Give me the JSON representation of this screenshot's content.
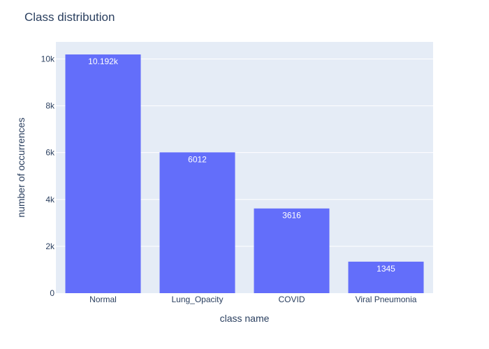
{
  "chart_data": {
    "type": "bar",
    "title": "Class distribution",
    "xlabel": "class name",
    "ylabel": "number of occurrences",
    "categories": [
      "Normal",
      "Lung_Opacity",
      "COVID",
      "Viral Pneumonia"
    ],
    "values": [
      10192,
      6012,
      3616,
      1345
    ],
    "value_labels": [
      "10.192k",
      "6012",
      "3616",
      "1345"
    ],
    "ylim": [
      0,
      10729
    ],
    "yticks": [
      0,
      2000,
      4000,
      6000,
      8000,
      10000
    ],
    "ytick_labels": [
      "0",
      "2k",
      "4k",
      "6k",
      "8k",
      "10k"
    ],
    "grid": true,
    "colors": {
      "bar": "#636efa",
      "plot_bg": "#e5ecf6",
      "grid": "#ffffff",
      "text": "#2a3f5f"
    }
  }
}
